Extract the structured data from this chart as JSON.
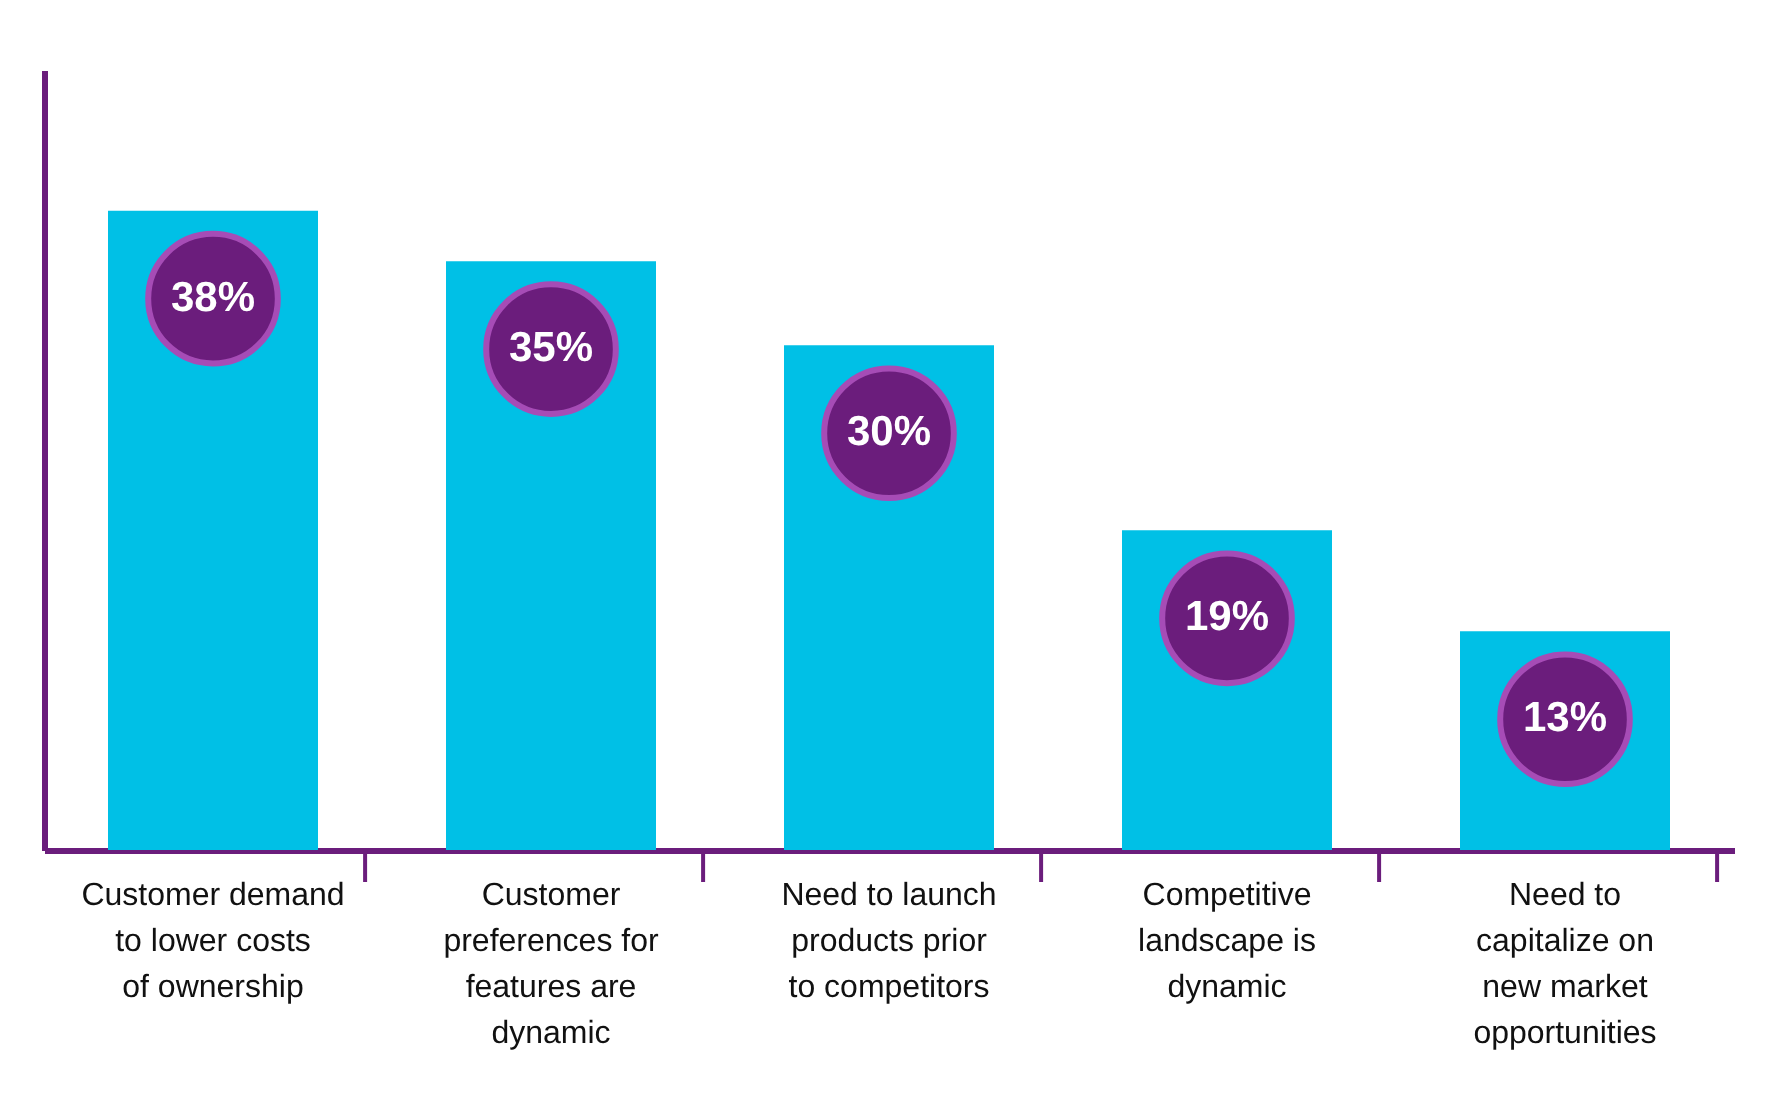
{
  "chart_data": {
    "type": "bar",
    "categories": [
      "Customer demand to lower costs of ownership",
      "Customer preferences for features are dynamic",
      "Need to launch products prior to competitors",
      "Competitive landscape is dynamic",
      "Need to capitalize on new market opportunities"
    ],
    "values": [
      38,
      35,
      30,
      19,
      13
    ],
    "value_labels": [
      "38%",
      "35%",
      "30%",
      "19%",
      "13%"
    ],
    "color": "#00c0e6",
    "grid": false
  }
}
